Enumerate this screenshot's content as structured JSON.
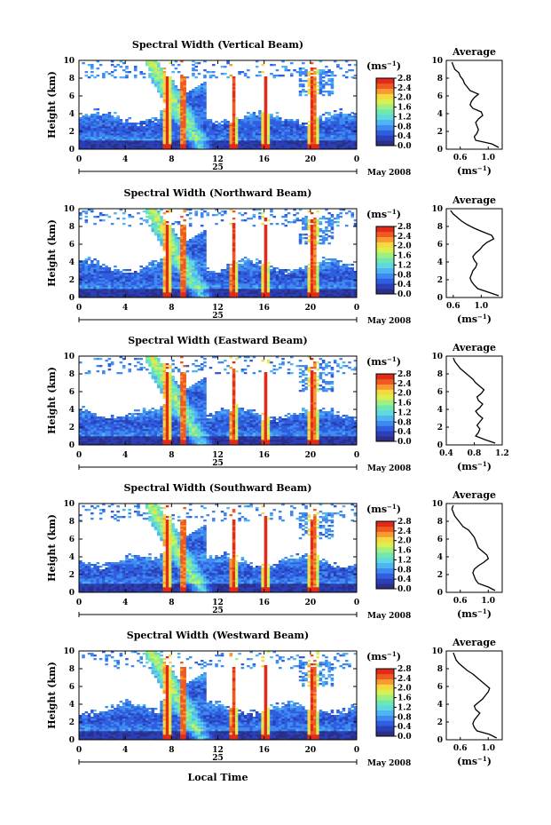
{
  "figure": {
    "xlabel": "Local Time",
    "date_day": "25",
    "date_month_year": "May 2008",
    "colorbar_unit": "(ms",
    "colorbar_unit_exp": "−1",
    "colorbar_unit_close": ")",
    "avg_title": "Average",
    "avg_xlabel": "(ms",
    "avg_xlabel_exp": "−1",
    "avg_xlabel_close": ")",
    "colormap": [
      "#2b2f86",
      "#2a3fb8",
      "#2f5fe0",
      "#3f8af0",
      "#4fb4f2",
      "#5fd8e0",
      "#6fe8b0",
      "#9ff080",
      "#d8f050",
      "#f8d840",
      "#f89a30",
      "#f05a20",
      "#e02a1a"
    ]
  },
  "chart_data": [
    {
      "type": "heatmap",
      "title": "Spectral Width (Vertical Beam)",
      "ylabel": "Height (km)",
      "xlim": [
        0,
        24
      ],
      "ylim": [
        0,
        10
      ],
      "xticks": [
        "0",
        "4",
        "8",
        "12",
        "16",
        "20",
        "0"
      ],
      "yticks": [
        "0",
        "2",
        "4",
        "6",
        "8",
        "10"
      ],
      "colorbar_ticks": [
        "0.0",
        "0.4",
        "0.8",
        "1.2",
        "1.6",
        "2.0",
        "2.4",
        "2.8"
      ],
      "average": {
        "xlim": [
          0.4,
          1.2
        ],
        "xticks": [
          "0.6",
          "1.0"
        ],
        "ylim": [
          0,
          10
        ],
        "yticks": [
          "0",
          "2",
          "4",
          "6",
          "8",
          "10"
        ],
        "height": [
          0.2,
          0.6,
          1.0,
          1.4,
          1.8,
          2.2,
          2.6,
          3.0,
          3.4,
          3.8,
          4.2,
          4.6,
          5.0,
          5.4,
          5.8,
          6.2,
          6.6,
          7.0,
          7.4,
          7.8,
          8.2,
          8.6,
          9.0,
          9.4,
          9.8
        ],
        "width": [
          1.15,
          1.05,
          0.82,
          0.8,
          0.84,
          0.86,
          0.84,
          0.82,
          0.86,
          0.92,
          0.9,
          0.78,
          0.74,
          0.76,
          0.8,
          0.86,
          0.74,
          0.7,
          0.66,
          0.64,
          0.6,
          0.58,
          0.52,
          0.5,
          0.48
        ]
      }
    },
    {
      "type": "heatmap",
      "title": "Spectral Width (Northward Beam)",
      "ylabel": "Height (km)",
      "xlim": [
        0,
        24
      ],
      "ylim": [
        0,
        10
      ],
      "xticks": [
        "0",
        "4",
        "8",
        "12",
        "16",
        "20",
        "0"
      ],
      "yticks": [
        "0",
        "2",
        "4",
        "6",
        "8",
        "10"
      ],
      "colorbar_ticks": [
        "0.0",
        "0.4",
        "0.8",
        "1.2",
        "1.6",
        "2.0",
        "2.4",
        "2.8"
      ],
      "average": {
        "xlim": [
          0.5,
          1.3
        ],
        "xticks": [
          "0.6",
          "1.0"
        ],
        "ylim": [
          0,
          10
        ],
        "yticks": [
          "0",
          "2",
          "4",
          "6",
          "8",
          "10"
        ],
        "height": [
          0.2,
          0.6,
          1.0,
          1.4,
          1.8,
          2.2,
          2.6,
          3.0,
          3.4,
          3.8,
          4.2,
          4.6,
          5.0,
          5.4,
          5.8,
          6.2,
          6.6,
          7.0,
          7.4,
          7.8,
          8.2,
          8.6,
          9.0,
          9.4,
          9.8
        ],
        "width": [
          1.25,
          1.1,
          0.95,
          0.9,
          0.86,
          0.84,
          0.86,
          0.88,
          0.92,
          0.94,
          0.9,
          0.88,
          0.92,
          0.98,
          1.02,
          1.08,
          1.18,
          1.15,
          1.02,
          0.9,
          0.8,
          0.72,
          0.66,
          0.6,
          0.56
        ]
      }
    },
    {
      "type": "heatmap",
      "title": "Spectral Width (Eastward Beam)",
      "ylabel": "Height (km)",
      "xlim": [
        0,
        24
      ],
      "ylim": [
        0,
        10
      ],
      "xticks": [
        "0",
        "4",
        "8",
        "12",
        "16",
        "20",
        "0"
      ],
      "yticks": [
        "0",
        "2",
        "4",
        "6",
        "8",
        "10"
      ],
      "colorbar_ticks": [
        "0.0",
        "0.4",
        "0.8",
        "1.2",
        "1.6",
        "2.0",
        "2.4",
        "2.8"
      ],
      "average": {
        "xlim": [
          0.4,
          1.2
        ],
        "xticks": [
          "0.4",
          "0.8",
          "1.2"
        ],
        "ylim": [
          0,
          10
        ],
        "yticks": [
          "0",
          "2",
          "4",
          "6",
          "8",
          "10"
        ],
        "height": [
          0.2,
          0.6,
          1.0,
          1.4,
          1.8,
          2.2,
          2.6,
          3.0,
          3.4,
          3.8,
          4.2,
          4.6,
          5.0,
          5.4,
          5.8,
          6.2,
          6.6,
          7.0,
          7.4,
          7.8,
          8.2,
          8.6,
          9.0,
          9.4,
          9.8
        ],
        "width": [
          1.1,
          0.95,
          0.82,
          0.86,
          0.88,
          0.84,
          0.88,
          0.92,
          0.86,
          0.82,
          0.88,
          0.92,
          0.86,
          0.84,
          0.9,
          0.94,
          0.88,
          0.82,
          0.78,
          0.72,
          0.66,
          0.6,
          0.56,
          0.52,
          0.5
        ]
      }
    },
    {
      "type": "heatmap",
      "title": "Spectral Width (Southward Beam)",
      "ylabel": "Height (km)",
      "xlim": [
        0,
        24
      ],
      "ylim": [
        0,
        10
      ],
      "xticks": [
        "0",
        "4",
        "8",
        "12",
        "16",
        "20",
        "0"
      ],
      "yticks": [
        "0",
        "2",
        "4",
        "6",
        "8",
        "10"
      ],
      "colorbar_ticks": [
        "0.0",
        "0.4",
        "0.8",
        "1.2",
        "1.6",
        "2.0",
        "2.4",
        "2.8"
      ],
      "average": {
        "xlim": [
          0.4,
          1.2
        ],
        "xticks": [
          "0.6",
          "1.0"
        ],
        "ylim": [
          0,
          10
        ],
        "yticks": [
          "0",
          "2",
          "4",
          "6",
          "8",
          "10"
        ],
        "height": [
          0.2,
          0.6,
          1.0,
          1.4,
          1.8,
          2.2,
          2.6,
          3.0,
          3.4,
          3.8,
          4.2,
          4.6,
          5.0,
          5.4,
          5.8,
          6.2,
          6.6,
          7.0,
          7.4,
          7.8,
          8.2,
          8.6,
          9.0,
          9.4,
          9.8
        ],
        "width": [
          1.1,
          1.0,
          0.86,
          0.82,
          0.8,
          0.78,
          0.8,
          0.86,
          0.94,
          1.0,
          0.98,
          0.92,
          0.86,
          0.84,
          0.82,
          0.8,
          0.76,
          0.72,
          0.64,
          0.6,
          0.56,
          0.52,
          0.5,
          0.48,
          0.5
        ]
      }
    },
    {
      "type": "heatmap",
      "title": "Spectral Width (Westward Beam)",
      "ylabel": "Height (km)",
      "xlim": [
        0,
        24
      ],
      "ylim": [
        0,
        10
      ],
      "xticks": [
        "0",
        "4",
        "8",
        "12",
        "16",
        "20",
        "0"
      ],
      "yticks": [
        "0",
        "2",
        "4",
        "6",
        "8",
        "10"
      ],
      "colorbar_ticks": [
        "0.0",
        "0.4",
        "0.8",
        "1.2",
        "1.6",
        "2.0",
        "2.4",
        "2.8"
      ],
      "average": {
        "xlim": [
          0.4,
          1.2
        ],
        "xticks": [
          "0.6",
          "1.0"
        ],
        "ylim": [
          0,
          10
        ],
        "yticks": [
          "0",
          "2",
          "4",
          "6",
          "8",
          "10"
        ],
        "height": [
          0.2,
          0.6,
          1.0,
          1.4,
          1.8,
          2.2,
          2.6,
          3.0,
          3.4,
          3.8,
          4.2,
          4.6,
          5.0,
          5.4,
          5.8,
          6.2,
          6.6,
          7.0,
          7.4,
          7.8,
          8.2,
          8.6,
          9.0,
          9.4,
          9.8
        ],
        "width": [
          1.12,
          1.02,
          0.84,
          0.8,
          0.78,
          0.8,
          0.84,
          0.88,
          0.82,
          0.8,
          0.86,
          0.92,
          0.96,
          1.0,
          1.02,
          0.96,
          0.9,
          0.84,
          0.78,
          0.7,
          0.64,
          0.58,
          0.54,
          0.52,
          0.5
        ]
      }
    }
  ]
}
